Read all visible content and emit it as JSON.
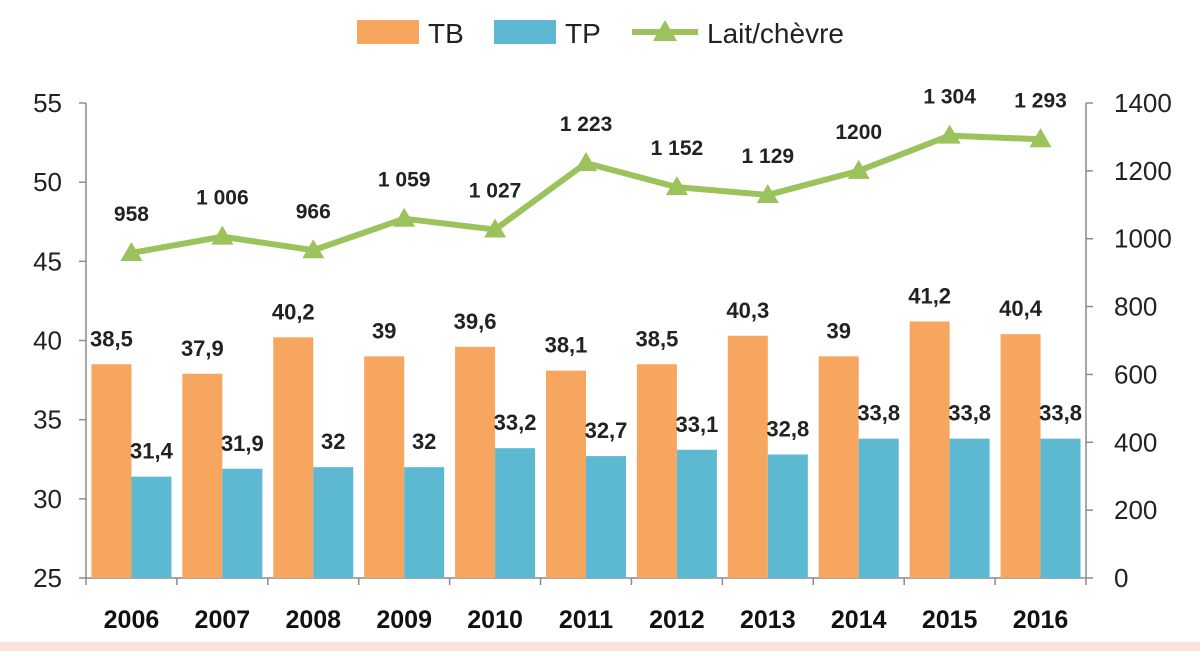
{
  "chart_data": {
    "type": "bar",
    "categories": [
      "2006",
      "2007",
      "2008",
      "2009",
      "2010",
      "2011",
      "2012",
      "2013",
      "2014",
      "2015",
      "2016"
    ],
    "series": [
      {
        "name": "TB",
        "type": "bar",
        "axis": "left",
        "color": "#F7A65F",
        "values": [
          38.5,
          37.9,
          40.2,
          39,
          39.6,
          38.1,
          38.5,
          40.3,
          39,
          41.2,
          40.4
        ],
        "labels": [
          "38,5",
          "37,9",
          "40,2",
          "39",
          "39,6",
          "38,1",
          "38,5",
          "40,3",
          "39",
          "41,2",
          "40,4"
        ]
      },
      {
        "name": "TP",
        "type": "bar",
        "axis": "left",
        "color": "#5DB8D2",
        "values": [
          31.4,
          31.9,
          32,
          32,
          33.2,
          32.7,
          33.1,
          32.8,
          33.8,
          33.8,
          33.8
        ],
        "labels": [
          "31,4",
          "31,9",
          "32",
          "32",
          "33,2",
          "32,7",
          "33,1",
          "32,8",
          "33,8",
          "33,8",
          "33,8"
        ]
      },
      {
        "name": "Lait/chèvre",
        "type": "line",
        "marker": "triangle",
        "axis": "right",
        "color": "#9BC25B",
        "values": [
          958,
          1006,
          966,
          1059,
          1027,
          1223,
          1152,
          1129,
          1200,
          1304,
          1293
        ],
        "labels": [
          "958",
          "1 006",
          "966",
          "1 059",
          "1 027",
          "1 223",
          "1 152",
          "1 129",
          "1200",
          "1 304",
          "1 293"
        ]
      }
    ],
    "y_left": {
      "min": 25,
      "max": 55,
      "ticks": [
        25,
        30,
        35,
        40,
        45,
        50,
        55
      ]
    },
    "y_right": {
      "min": 0,
      "max": 1400,
      "ticks": [
        0,
        200,
        400,
        600,
        800,
        1000,
        1200,
        1400
      ]
    },
    "legend_position": "top",
    "grid": false
  }
}
